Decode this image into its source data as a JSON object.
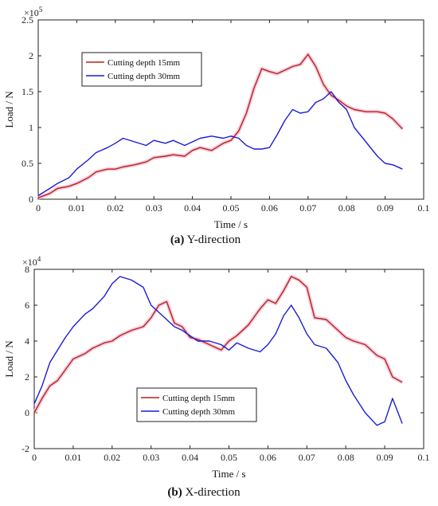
{
  "chart_data": [
    {
      "type": "line",
      "caption_letter": "(a)",
      "caption_text": " Y-direction",
      "xlabel": "Time / s",
      "ylabel": "Load / N",
      "y_exponent_base": "×10",
      "y_exponent_power": "5",
      "xlim": [
        0,
        0.1
      ],
      "ylim": [
        0,
        2.5
      ],
      "xticks": [
        "0",
        "0.01",
        "0.02",
        "0.03",
        "0.04",
        "0.05",
        "0.06",
        "0.07",
        "0.08",
        "0.09",
        "0.1"
      ],
      "yticks": [
        "0",
        "0.5",
        "1",
        "1.5",
        "2",
        "2.5"
      ],
      "grid": false,
      "legend_position": "upper-left",
      "series": [
        {
          "name": "Cutting depth 15mm",
          "color": "#b5231c",
          "x": [
            0,
            0.003,
            0.005,
            0.008,
            0.01,
            0.013,
            0.015,
            0.018,
            0.02,
            0.022,
            0.025,
            0.028,
            0.03,
            0.033,
            0.035,
            0.038,
            0.04,
            0.042,
            0.045,
            0.048,
            0.05,
            0.052,
            0.054,
            0.056,
            0.058,
            0.06,
            0.062,
            0.064,
            0.066,
            0.068,
            0.07,
            0.072,
            0.074,
            0.076,
            0.078,
            0.08,
            0.082,
            0.085,
            0.088,
            0.09,
            0.092,
            0.0945
          ],
          "y": [
            0.02,
            0.08,
            0.15,
            0.18,
            0.22,
            0.3,
            0.38,
            0.42,
            0.42,
            0.45,
            0.48,
            0.52,
            0.58,
            0.6,
            0.62,
            0.6,
            0.68,
            0.72,
            0.68,
            0.78,
            0.82,
            0.95,
            1.2,
            1.55,
            1.82,
            1.78,
            1.75,
            1.8,
            1.85,
            1.88,
            2.02,
            1.85,
            1.6,
            1.45,
            1.38,
            1.3,
            1.25,
            1.22,
            1.22,
            1.2,
            1.12,
            0.98
          ]
        },
        {
          "name": "Cutting depth 30mm",
          "color": "#1c1cd6",
          "x": [
            0,
            0.003,
            0.005,
            0.008,
            0.01,
            0.013,
            0.015,
            0.018,
            0.02,
            0.022,
            0.025,
            0.028,
            0.03,
            0.033,
            0.035,
            0.038,
            0.04,
            0.042,
            0.045,
            0.048,
            0.05,
            0.052,
            0.054,
            0.056,
            0.058,
            0.06,
            0.062,
            0.064,
            0.066,
            0.068,
            0.07,
            0.072,
            0.074,
            0.076,
            0.078,
            0.08,
            0.082,
            0.085,
            0.088,
            0.09,
            0.092,
            0.0945
          ],
          "y": [
            0.05,
            0.15,
            0.22,
            0.3,
            0.42,
            0.55,
            0.65,
            0.72,
            0.78,
            0.85,
            0.8,
            0.75,
            0.82,
            0.78,
            0.82,
            0.75,
            0.8,
            0.85,
            0.88,
            0.85,
            0.88,
            0.85,
            0.75,
            0.7,
            0.7,
            0.72,
            0.9,
            1.1,
            1.25,
            1.2,
            1.22,
            1.35,
            1.4,
            1.5,
            1.35,
            1.25,
            1.0,
            0.8,
            0.6,
            0.5,
            0.48,
            0.42
          ]
        }
      ]
    },
    {
      "type": "line",
      "caption_letter": "(b)",
      "caption_text": " X-direction",
      "xlabel": "Time / s",
      "ylabel": "Load / N",
      "y_exponent_base": "×10",
      "y_exponent_power": "4",
      "xlim": [
        0,
        0.1
      ],
      "ylim": [
        -2,
        8
      ],
      "xticks": [
        "0",
        "0.01",
        "0.02",
        "0.03",
        "0.04",
        "0.05",
        "0.06",
        "0.07",
        "0.08",
        "0.09",
        "0.1"
      ],
      "yticks": [
        "-2",
        "0",
        "2",
        "4",
        "6",
        "8"
      ],
      "grid": false,
      "legend_position": "lower-center",
      "series": [
        {
          "name": "Cutting depth 15mm",
          "color": "#b5231c",
          "x": [
            0,
            0.002,
            0.004,
            0.006,
            0.008,
            0.01,
            0.013,
            0.015,
            0.018,
            0.02,
            0.022,
            0.025,
            0.028,
            0.03,
            0.032,
            0.034,
            0.036,
            0.038,
            0.04,
            0.042,
            0.045,
            0.048,
            0.05,
            0.052,
            0.055,
            0.058,
            0.06,
            0.062,
            0.064,
            0.066,
            0.068,
            0.07,
            0.072,
            0.075,
            0.078,
            0.08,
            0.082,
            0.085,
            0.088,
            0.09,
            0.092,
            0.0945
          ],
          "y": [
            0,
            0.8,
            1.5,
            1.8,
            2.4,
            3.0,
            3.3,
            3.6,
            3.9,
            4.0,
            4.3,
            4.6,
            4.8,
            5.3,
            6.0,
            6.2,
            5.0,
            4.8,
            4.2,
            4.1,
            3.8,
            3.5,
            4.0,
            4.3,
            4.9,
            5.8,
            6.3,
            6.1,
            6.8,
            7.6,
            7.4,
            7.0,
            5.3,
            5.2,
            4.6,
            4.2,
            4.0,
            3.8,
            3.2,
            3.0,
            2.0,
            1.7
          ]
        },
        {
          "name": "Cutting depth 30mm",
          "color": "#1c1cd6",
          "x": [
            0,
            0.002,
            0.004,
            0.006,
            0.008,
            0.01,
            0.013,
            0.015,
            0.018,
            0.02,
            0.022,
            0.025,
            0.028,
            0.03,
            0.032,
            0.034,
            0.036,
            0.038,
            0.04,
            0.042,
            0.045,
            0.048,
            0.05,
            0.052,
            0.055,
            0.058,
            0.06,
            0.062,
            0.064,
            0.066,
            0.068,
            0.07,
            0.072,
            0.075,
            0.078,
            0.08,
            0.082,
            0.085,
            0.088,
            0.09,
            0.092,
            0.0945
          ],
          "y": [
            0.5,
            1.5,
            2.8,
            3.5,
            4.2,
            4.8,
            5.5,
            5.8,
            6.5,
            7.2,
            7.6,
            7.4,
            7.0,
            6.0,
            5.6,
            5.2,
            4.8,
            4.6,
            4.3,
            4.0,
            4.0,
            3.8,
            3.5,
            3.9,
            3.6,
            3.4,
            3.8,
            4.4,
            5.4,
            6.0,
            5.3,
            4.4,
            3.8,
            3.6,
            2.8,
            1.8,
            1.0,
            0.0,
            -0.7,
            -0.5,
            0.8,
            -0.6
          ]
        }
      ]
    }
  ]
}
